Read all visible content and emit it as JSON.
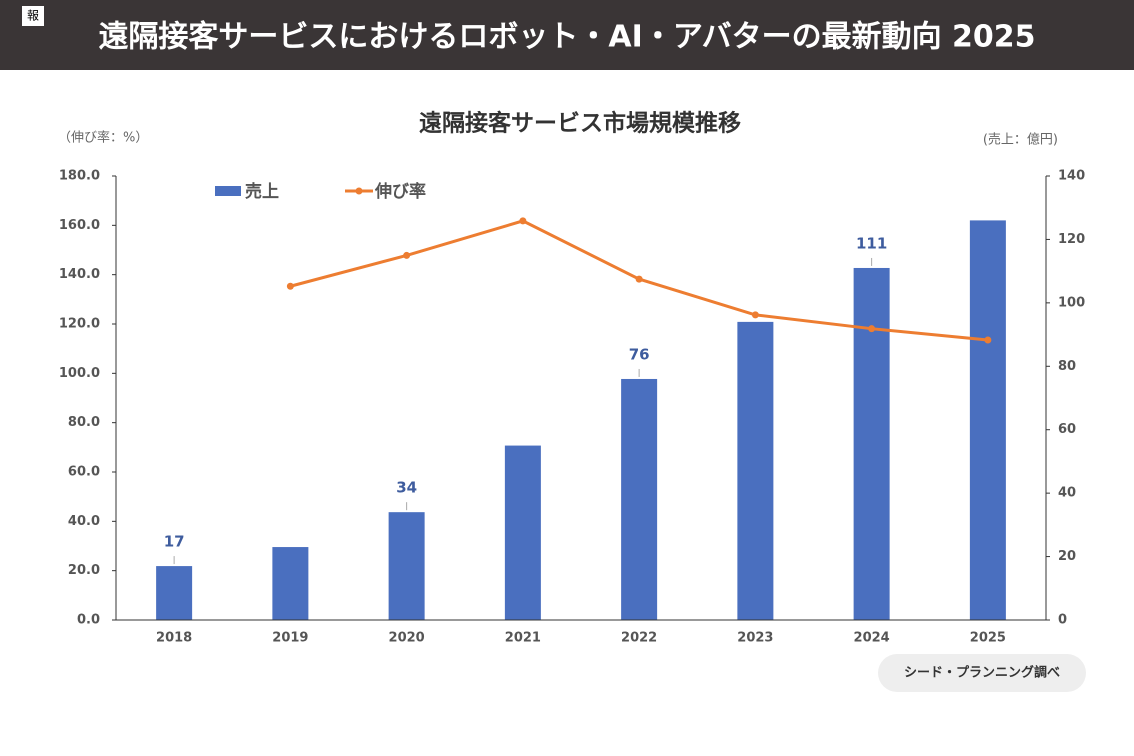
{
  "header": {
    "badge": "報",
    "title": "遠隔接客サービスにおけるロボット・AI・アバターの最新動向 2025"
  },
  "chart_data": {
    "type": "bar",
    "title": "遠隔接客サービス市場規模推移",
    "y_label": "（伸び率：%）",
    "y2_label": "(売上：億円)",
    "categories": [
      "2018",
      "2019",
      "2020",
      "2021",
      "2022",
      "2023",
      "2024",
      "2025"
    ],
    "series": [
      {
        "name": "売上",
        "type": "bar",
        "axis": "y2",
        "color": "#4a6fbf",
        "values": [
          17,
          23,
          34,
          55,
          76,
          94,
          111,
          126
        ],
        "value_labels": [
          "17",
          null,
          "34",
          null,
          "76",
          null,
          "111",
          null
        ]
      },
      {
        "name": "伸び率",
        "type": "line",
        "color": "#ed7d31",
        "values": [
          null,
          135.3,
          147.8,
          161.8,
          138.2,
          123.7,
          118.1,
          113.5
        ]
      }
    ],
    "ylim": [
      0,
      180
    ],
    "yticks": [
      {
        "value": 0,
        "label": "0.0"
      },
      {
        "value": 20,
        "label": "20.0"
      },
      {
        "value": 40,
        "label": "40.0"
      },
      {
        "value": 60,
        "label": "60.0"
      },
      {
        "value": 80,
        "label": "80.0"
      },
      {
        "value": 100,
        "label": "100.0"
      },
      {
        "value": 120,
        "label": "120.0"
      },
      {
        "value": 140,
        "label": "140.0"
      },
      {
        "value": 160,
        "label": "160.0"
      },
      {
        "value": 180,
        "label": "180.0"
      }
    ],
    "y2lim": [
      0,
      140
    ],
    "y2ticks": [
      0,
      20,
      40,
      60,
      80,
      100,
      120,
      140
    ],
    "legend": "top-left"
  },
  "source": "シード・プランニング調べ"
}
